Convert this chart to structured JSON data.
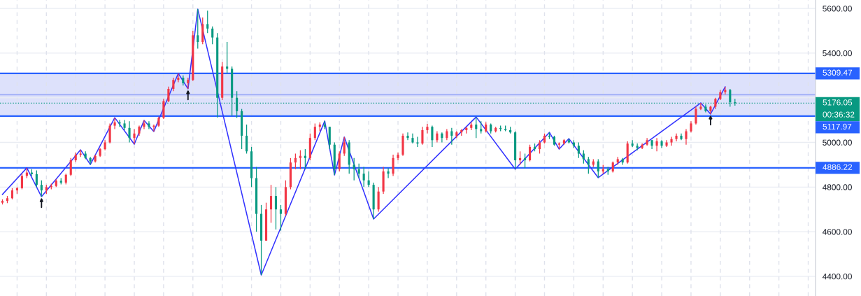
{
  "chart_data": {
    "type": "candlestick",
    "categories": [
      null,
      null,
      null,
      null,
      null,
      null,
      null,
      null,
      null,
      null,
      null,
      null,
      null,
      null,
      null,
      null,
      null,
      null,
      null,
      null,
      null,
      null,
      null,
      null,
      null,
      null,
      null,
      null,
      null,
      null,
      null,
      null,
      null,
      null,
      null,
      null,
      null,
      null,
      null,
      null,
      null,
      null,
      null,
      null,
      null,
      null,
      null,
      null,
      null,
      null,
      null,
      null,
      null,
      null,
      null,
      null,
      null,
      null,
      null,
      null,
      null,
      null,
      null,
      null,
      null,
      null,
      null,
      null,
      null,
      null,
      null,
      null,
      null,
      null,
      null,
      null,
      null,
      null,
      null,
      null,
      null,
      null,
      null,
      null,
      null,
      null,
      null,
      null,
      null,
      null,
      null,
      null,
      null,
      null,
      null,
      null,
      null,
      null,
      null,
      null,
      null,
      null,
      null,
      null,
      null,
      null,
      null,
      null,
      null,
      null,
      null,
      null,
      null,
      null,
      null,
      null,
      null,
      null,
      null,
      null,
      null,
      null,
      null,
      null,
      null,
      null,
      null,
      null,
      null,
      null,
      null,
      null,
      null,
      null,
      null,
      null,
      null,
      null,
      null,
      null,
      null,
      null,
      null,
      null,
      null,
      null,
      null,
      null,
      null,
      null,
      null,
      null,
      null,
      null,
      null,
      null,
      null,
      null,
      null,
      null,
      null,
      null,
      null,
      null,
      null,
      null,
      null
    ],
    "ohlc": [
      [
        4730,
        4745,
        4722,
        4738
      ],
      [
        4738,
        4760,
        4728,
        4750
      ],
      [
        4750,
        4795,
        4745,
        4785
      ],
      [
        4785,
        4800,
        4770,
        4795
      ],
      [
        4795,
        4860,
        4790,
        4850
      ],
      [
        4850,
        4886,
        4840,
        4865
      ],
      [
        4865,
        4880,
        4850,
        4858
      ],
      [
        4858,
        4875,
        4800,
        4810
      ],
      [
        4810,
        4830,
        4757,
        4785
      ],
      [
        4785,
        4810,
        4770,
        4800
      ],
      [
        4800,
        4815,
        4790,
        4805
      ],
      [
        4805,
        4835,
        4800,
        4828
      ],
      [
        4828,
        4840,
        4812,
        4820
      ],
      [
        4820,
        4860,
        4812,
        4855
      ],
      [
        4855,
        4930,
        4850,
        4920
      ],
      [
        4920,
        4955,
        4912,
        4945
      ],
      [
        4945,
        4967,
        4935,
        4950
      ],
      [
        4950,
        4960,
        4925,
        4930
      ],
      [
        4930,
        4935,
        4901,
        4915
      ],
      [
        4915,
        4945,
        4910,
        4940
      ],
      [
        4940,
        4975,
        4935,
        4970
      ],
      [
        4970,
        5010,
        4965,
        5000
      ],
      [
        5000,
        5085,
        4995,
        5075
      ],
      [
        5075,
        5111,
        5060,
        5090
      ],
      [
        5090,
        5100,
        5070,
        5085
      ],
      [
        5085,
        5100,
        5055,
        5065
      ],
      [
        5065,
        5095,
        5000,
        5020
      ],
      [
        5020,
        5060,
        4992,
        5040
      ],
      [
        5040,
        5075,
        5030,
        5070
      ],
      [
        5070,
        5099,
        5060,
        5085
      ],
      [
        5085,
        5095,
        5060,
        5070
      ],
      [
        5070,
        5080,
        5049,
        5075
      ],
      [
        5075,
        5115,
        5070,
        5110
      ],
      [
        5110,
        5195,
        5105,
        5185
      ],
      [
        5185,
        5250,
        5180,
        5240
      ],
      [
        5240,
        5290,
        5230,
        5280
      ],
      [
        5280,
        5309,
        5270,
        5290
      ],
      [
        5290,
        5300,
        5255,
        5265
      ],
      [
        5265,
        5290,
        5240,
        5280
      ],
      [
        5280,
        5500,
        5275,
        5480
      ],
      [
        5480,
        5597,
        5420,
        5450
      ],
      [
        5450,
        5560,
        5440,
        5530
      ],
      [
        5530,
        5590,
        5490,
        5510
      ],
      [
        5510,
        5520,
        5440,
        5470
      ],
      [
        5470,
        5490,
        5111,
        5200
      ],
      [
        5200,
        5360,
        5190,
        5340
      ],
      [
        5340,
        5450,
        5310,
        5330
      ],
      [
        5330,
        5340,
        5120,
        5200
      ],
      [
        5200,
        5230,
        5110,
        5140
      ],
      [
        5140,
        5150,
        4970,
        5030
      ],
      [
        5030,
        5080,
        4950,
        4960
      ],
      [
        4960,
        4980,
        4800,
        4840
      ],
      [
        4840,
        4890,
        4600,
        4680
      ],
      [
        4680,
        4720,
        4406,
        4560
      ],
      [
        4560,
        4730,
        4560,
        4700
      ],
      [
        4700,
        4810,
        4640,
        4760
      ],
      [
        4760,
        4800,
        4610,
        4700
      ],
      [
        4700,
        4720,
        4605,
        4680
      ],
      [
        4680,
        4830,
        4670,
        4800
      ],
      [
        4800,
        4930,
        4790,
        4910
      ],
      [
        4910,
        4950,
        4880,
        4930
      ],
      [
        4930,
        4965,
        4880,
        4940
      ],
      [
        4940,
        4970,
        4880,
        4930
      ],
      [
        4930,
        5040,
        4920,
        5020
      ],
      [
        5020,
        5085,
        5010,
        5070
      ],
      [
        5070,
        5090,
        5050,
        5080
      ],
      [
        5080,
        5096,
        5060,
        5070
      ],
      [
        5070,
        5070,
        4970,
        4990
      ],
      [
        4990,
        5000,
        4854,
        4880
      ],
      [
        4880,
        4960,
        4870,
        4950
      ],
      [
        4950,
        5024,
        4940,
        5000
      ],
      [
        5000,
        5010,
        4860,
        4900
      ],
      [
        4900,
        4930,
        4830,
        4880
      ],
      [
        4880,
        4905,
        4840,
        4860
      ],
      [
        4860,
        4890,
        4800,
        4830
      ],
      [
        4830,
        4870,
        4800,
        4810
      ],
      [
        4810,
        4820,
        4657,
        4700
      ],
      [
        4700,
        4800,
        4690,
        4780
      ],
      [
        4780,
        4890,
        4770,
        4870
      ],
      [
        4870,
        4885,
        4840,
        4860
      ],
      [
        4860,
        4945,
        4850,
        4930
      ],
      [
        4930,
        4955,
        4920,
        4945
      ],
      [
        4945,
        5040,
        4940,
        5030
      ],
      [
        5030,
        5045,
        5010,
        5020
      ],
      [
        5020,
        5040,
        4995,
        5000
      ],
      [
        5000,
        5025,
        4980,
        4995
      ],
      [
        4995,
        5070,
        4990,
        5055
      ],
      [
        5055,
        5083,
        5040,
        5070
      ],
      [
        5070,
        5075,
        4980,
        5010
      ],
      [
        5010,
        5050,
        5000,
        5040
      ],
      [
        5040,
        5045,
        5000,
        5020
      ],
      [
        5020,
        5060,
        5010,
        5050
      ],
      [
        5050,
        5065,
        4990,
        5030
      ],
      [
        5030,
        5050,
        5020,
        5045
      ],
      [
        5045,
        5060,
        5030,
        5055
      ],
      [
        5055,
        5070,
        5040,
        5065
      ],
      [
        5065,
        5090,
        5055,
        5080
      ],
      [
        5080,
        5114,
        5020,
        5060
      ],
      [
        5060,
        5095,
        5040,
        5050
      ],
      [
        5050,
        5090,
        5045,
        5080
      ],
      [
        5080,
        5085,
        5040,
        5050
      ],
      [
        5050,
        5070,
        5045,
        5065
      ],
      [
        5065,
        5075,
        5050,
        5060
      ],
      [
        5060,
        5075,
        5050,
        5055
      ],
      [
        5055,
        5070,
        5040,
        5045
      ],
      [
        5045,
        5050,
        4880,
        4920
      ],
      [
        4920,
        4960,
        4900,
        4930
      ],
      [
        4930,
        4950,
        4885,
        4920
      ],
      [
        4920,
        4990,
        4915,
        4980
      ],
      [
        4980,
        4995,
        4960,
        4970
      ],
      [
        4970,
        5010,
        4950,
        5000
      ],
      [
        5000,
        5040,
        4995,
        5030
      ],
      [
        5030,
        5045,
        5015,
        5025
      ],
      [
        5025,
        5030,
        4985,
        4990
      ],
      [
        4990,
        5000,
        4970,
        4995
      ],
      [
        4995,
        5015,
        4990,
        5010
      ],
      [
        5010,
        5017,
        4995,
        5000
      ],
      [
        5000,
        5010,
        4975,
        4985
      ],
      [
        4985,
        5000,
        4930,
        4950
      ],
      [
        4950,
        4965,
        4905,
        4925
      ],
      [
        4925,
        4935,
        4860,
        4900
      ],
      [
        4900,
        4925,
        4890,
        4915
      ],
      [
        4915,
        4925,
        4842,
        4870
      ],
      [
        4870,
        4900,
        4860,
        4880
      ],
      [
        4880,
        4890,
        4855,
        4870
      ],
      [
        4870,
        4915,
        4865,
        4910
      ],
      [
        4910,
        4935,
        4900,
        4925
      ],
      [
        4925,
        4930,
        4900,
        4910
      ],
      [
        4910,
        5005,
        4905,
        4995
      ],
      [
        4995,
        5010,
        4980,
        4985
      ],
      [
        4985,
        4995,
        4965,
        4975
      ],
      [
        4975,
        4995,
        4970,
        4990
      ],
      [
        4990,
        5020,
        4985,
        5010
      ],
      [
        5010,
        5012,
        4970,
        4985
      ],
      [
        4985,
        5020,
        4960,
        5005
      ],
      [
        5005,
        5010,
        4975,
        4985
      ],
      [
        4985,
        5010,
        4980,
        5000
      ],
      [
        5000,
        5025,
        4985,
        5015
      ],
      [
        5015,
        5040,
        5005,
        5030
      ],
      [
        5030,
        5040,
        5010,
        5015
      ],
      [
        5015,
        5060,
        4990,
        5050
      ],
      [
        5050,
        5095,
        5045,
        5085
      ],
      [
        5085,
        5160,
        5080,
        5150
      ],
      [
        5150,
        5177,
        5145,
        5160
      ],
      [
        5160,
        5170,
        5135,
        5140
      ],
      [
        5140,
        5165,
        5127,
        5160
      ],
      [
        5160,
        5200,
        5150,
        5195
      ],
      [
        5195,
        5235,
        5190,
        5225
      ],
      [
        5225,
        5249,
        5215,
        5235
      ],
      [
        5235,
        5240,
        5160,
        5180
      ],
      [
        5180,
        5195,
        5165,
        5176.05
      ],
      null,
      null,
      null,
      null,
      null,
      null,
      null,
      null,
      null,
      null,
      null,
      null,
      null,
      null,
      null,
      null
    ],
    "colors": [
      "#f23645",
      "#f23645",
      "#f23645",
      "#f23645",
      "#f23645",
      "#f23645",
      "#089981",
      "#089981",
      "#089981",
      "#f23645",
      "#f23645",
      "#f23645",
      "#089981",
      "#f23645",
      "#f23645",
      "#f23645",
      "#f23645",
      "#089981",
      "#089981",
      "#f23645",
      "#f23645",
      "#f23645",
      "#f23645",
      "#f23645",
      "#089981",
      "#089981",
      "#089981",
      "#f23645",
      "#f23645",
      "#f23645",
      "#089981",
      "#f23645",
      "#f23645",
      "#f23645",
      "#f23645",
      "#f23645",
      "#f23645",
      "#089981",
      "#f23645",
      "#f23645",
      "#089981",
      "#f23645",
      "#089981",
      "#089981",
      "#089981",
      "#f23645",
      "#089981",
      "#089981",
      "#089981",
      "#089981",
      "#089981",
      "#089981",
      "#089981",
      "#089981",
      "#f23645",
      "#f23645",
      "#089981",
      "#089981",
      "#f23645",
      "#f23645",
      "#f23645",
      "#f23645",
      "#089981",
      "#f23645",
      "#f23645",
      "#f23645",
      "#089981",
      "#089981",
      "#089981",
      "#f23645",
      "#f23645",
      "#089981",
      "#089981",
      "#089981",
      "#089981",
      "#089981",
      "#089981",
      "#f23645",
      "#f23645",
      "#089981",
      "#f23645",
      "#f23645",
      "#f23645",
      "#089981",
      "#089981",
      "#089981",
      "#f23645",
      "#f23645",
      "#089981",
      "#f23645",
      "#089981",
      "#f23645",
      "#089981",
      "#f23645",
      "#f23645",
      "#f23645",
      "#f23645",
      "#089981",
      "#089981",
      "#f23645",
      "#089981",
      "#f23645",
      "#089981",
      "#089981",
      "#089981",
      "#089981",
      "#f23645",
      "#089981",
      "#f23645",
      "#089981",
      "#f23645",
      "#f23645",
      "#089981",
      "#089981",
      "#f23645",
      "#f23645",
      "#089981",
      "#089981",
      "#089981",
      "#089981",
      "#089981",
      "#f23645",
      "#089981",
      "#f23645",
      "#089981",
      "#f23645",
      "#f23645",
      "#089981",
      "#f23645",
      "#089981",
      "#089981",
      "#f23645",
      "#f23645",
      "#089981",
      "#f23645",
      "#089981",
      "#f23645",
      "#f23645",
      "#f23645",
      "#089981",
      "#f23645",
      "#f23645",
      "#f23645",
      "#f23645",
      "#089981",
      "#f23645",
      "#f23645",
      "#f23645",
      "#f23645",
      "#089981",
      "#089981",
      null,
      null,
      null,
      null,
      null,
      null,
      null,
      null,
      null,
      null,
      null,
      null,
      null,
      null,
      null,
      null
    ],
    "series": [
      {
        "type": "line",
        "color": "#3232ff",
        "values": [
          4767,
          null,
          null,
          null,
          null,
          4886,
          null,
          null,
          4757,
          null,
          null,
          null,
          null,
          null,
          null,
          null,
          4967,
          null,
          4901,
          null,
          null,
          null,
          null,
          5111,
          null,
          null,
          null,
          4992,
          null,
          5099,
          null,
          5049,
          null,
          null,
          null,
          null,
          5309,
          null,
          5240,
          null,
          5597,
          null,
          null,
          null,
          null,
          null,
          null,
          null,
          null,
          null,
          null,
          null,
          null,
          4406,
          null,
          null,
          null,
          null,
          null,
          null,
          null,
          null,
          null,
          null,
          null,
          null,
          5096,
          null,
          4854,
          null,
          5024,
          null,
          null,
          null,
          null,
          null,
          4657,
          null,
          null,
          null,
          null,
          null,
          null,
          null,
          null,
          null,
          null,
          null,
          null,
          null,
          null,
          null,
          null,
          null,
          null,
          null,
          null,
          5114,
          null,
          null,
          null,
          null,
          null,
          null,
          null,
          4880,
          null,
          null,
          null,
          null,
          null,
          null,
          5045,
          null,
          4970,
          null,
          5017,
          null,
          null,
          null,
          null,
          null,
          4842,
          null,
          null,
          null,
          null,
          null,
          null,
          null,
          null,
          null,
          null,
          null,
          null,
          null,
          null,
          null,
          null,
          null,
          null,
          null,
          null,
          5177,
          null,
          5127,
          null,
          null,
          5249,
          null,
          null,
          null,
          null,
          null,
          null,
          null,
          null,
          null,
          null,
          null,
          null,
          null,
          null,
          null,
          null,
          null,
          null
        ]
      }
    ],
    "ylim": [
      4312,
      5638
    ],
    "yticks": [
      {
        "value": 4400,
        "label": "4400.00"
      },
      {
        "value": 4600,
        "label": "4600.00"
      },
      {
        "value": 4800,
        "label": "4800.00"
      },
      {
        "value": 5000,
        "label": "5000.00"
      },
      {
        "value": 5200,
        "label": null
      },
      {
        "value": 5400,
        "label": "5400.00"
      },
      {
        "value": 5600,
        "label": "5600.00"
      }
    ],
    "tick_labels": "y",
    "grid": true,
    "bands": [
      {
        "axis": "y",
        "from": 5117.97,
        "to": 5309.47,
        "color": "#dde1fb"
      }
    ],
    "ref_lines": [
      {
        "axis": "y",
        "value": 5309.47,
        "label": "5309.47",
        "color": "#2962ff"
      },
      {
        "axis": "y",
        "value": 5214,
        "color": "#a3b0f7"
      },
      {
        "axis": "y",
        "value": 5117.97,
        "label": "5117.97",
        "color": "#2962ff"
      },
      {
        "axis": "y",
        "value": 4886.22,
        "label": "4886.22",
        "color": "#2962ff"
      },
      {
        "axis": "y",
        "value": 5176.05,
        "label": "5176.05",
        "color": "#089981",
        "line_style": "dotted"
      }
    ],
    "annotations": [
      "00:36:32"
    ]
  }
}
